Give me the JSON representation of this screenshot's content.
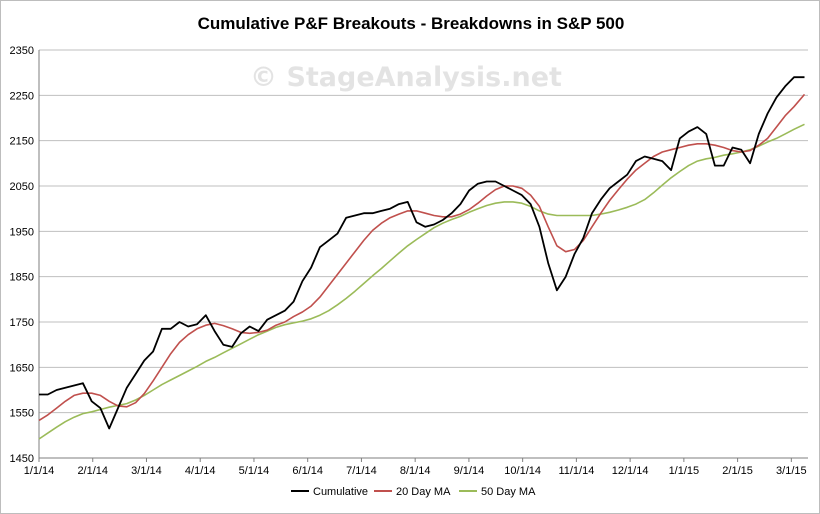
{
  "chart_data": {
    "type": "line",
    "title": "Cumulative P&F Breakouts - Breakdowns in S&P 500",
    "watermark": "© StageAnalysis.net",
    "xlabel": "",
    "ylabel": "",
    "ylim": [
      1450,
      2350
    ],
    "yticks": [
      1450,
      1550,
      1650,
      1750,
      1850,
      1950,
      2050,
      2150,
      2250,
      2350
    ],
    "xticks": [
      "1/1/14",
      "2/1/14",
      "3/1/14",
      "4/1/14",
      "5/1/14",
      "6/1/14",
      "7/1/14",
      "8/1/14",
      "9/1/14",
      "10/1/14",
      "11/1/14",
      "12/1/14",
      "1/1/15",
      "2/1/15",
      "3/1/15"
    ],
    "x_domain_days": [
      0,
      438
    ],
    "grid": true,
    "legend_position": "bottom",
    "series": [
      {
        "name": "Cumulative",
        "color": "#000000",
        "x_days": [
          0,
          5,
          10,
          15,
          20,
          25,
          30,
          35,
          40,
          45,
          50,
          55,
          60,
          65,
          70,
          75,
          80,
          85,
          90,
          95,
          100,
          105,
          110,
          115,
          120,
          125,
          130,
          135,
          140,
          145,
          150,
          155,
          160,
          165,
          170,
          175,
          180,
          185,
          190,
          195,
          200,
          205,
          210,
          215,
          220,
          225,
          230,
          235,
          240,
          245,
          250,
          255,
          260,
          265,
          270,
          275,
          280,
          285,
          290,
          295,
          300,
          305,
          310,
          315,
          320,
          325,
          330,
          335,
          340,
          345,
          350,
          355,
          360,
          365,
          370,
          375,
          380,
          385,
          390,
          395,
          400,
          405,
          410,
          415,
          420,
          425,
          430,
          436
        ],
        "values": [
          1590,
          1590,
          1600,
          1605,
          1610,
          1615,
          1575,
          1560,
          1515,
          1560,
          1605,
          1635,
          1665,
          1685,
          1735,
          1735,
          1750,
          1740,
          1745,
          1765,
          1730,
          1700,
          1695,
          1725,
          1740,
          1730,
          1755,
          1765,
          1775,
          1795,
          1840,
          1870,
          1915,
          1930,
          1945,
          1980,
          1985,
          1990,
          1990,
          1995,
          2000,
          2010,
          2015,
          1970,
          1960,
          1965,
          1975,
          1990,
          2010,
          2040,
          2055,
          2060,
          2060,
          2050,
          2040,
          2030,
          2010,
          1960,
          1880,
          1820,
          1850,
          1900,
          1935,
          1990,
          2020,
          2045,
          2060,
          2075,
          2105,
          2115,
          2110,
          2105,
          2085,
          2155,
          2170,
          2180,
          2165,
          2095,
          2095,
          2135,
          2130,
          2100,
          2165,
          2210,
          2245,
          2270,
          2290,
          2290
        ]
      },
      {
        "name": "20 Day MA",
        "color": "#c0504d",
        "x_days": [
          0,
          5,
          10,
          15,
          20,
          25,
          30,
          35,
          40,
          45,
          50,
          55,
          60,
          65,
          70,
          75,
          80,
          85,
          90,
          95,
          100,
          105,
          110,
          115,
          120,
          125,
          130,
          135,
          140,
          145,
          150,
          155,
          160,
          165,
          170,
          175,
          180,
          185,
          190,
          195,
          200,
          205,
          210,
          215,
          220,
          225,
          230,
          235,
          240,
          245,
          250,
          255,
          260,
          265,
          270,
          275,
          280,
          285,
          290,
          295,
          300,
          305,
          310,
          315,
          320,
          325,
          330,
          335,
          340,
          345,
          350,
          355,
          360,
          365,
          370,
          375,
          380,
          385,
          390,
          395,
          400,
          405,
          410,
          415,
          420,
          425,
          430,
          436
        ],
        "values": [
          1533,
          1545,
          1560,
          1575,
          1588,
          1593,
          1593,
          1588,
          1575,
          1565,
          1563,
          1572,
          1592,
          1620,
          1650,
          1680,
          1705,
          1722,
          1735,
          1743,
          1747,
          1742,
          1735,
          1727,
          1725,
          1727,
          1732,
          1743,
          1750,
          1762,
          1772,
          1785,
          1805,
          1830,
          1855,
          1880,
          1905,
          1930,
          1952,
          1968,
          1980,
          1988,
          1995,
          1995,
          1990,
          1985,
          1982,
          1982,
          1988,
          1998,
          2012,
          2028,
          2042,
          2050,
          2050,
          2045,
          2030,
          2005,
          1960,
          1918,
          1905,
          1910,
          1930,
          1960,
          1990,
          2018,
          2042,
          2065,
          2085,
          2100,
          2115,
          2125,
          2130,
          2135,
          2140,
          2143,
          2143,
          2140,
          2135,
          2128,
          2125,
          2128,
          2140,
          2155,
          2180,
          2205,
          2225,
          2252
        ]
      },
      {
        "name": "50 Day MA",
        "color": "#9bbb59",
        "x_days": [
          0,
          5,
          10,
          15,
          20,
          25,
          30,
          35,
          40,
          45,
          50,
          55,
          60,
          65,
          70,
          75,
          80,
          85,
          90,
          95,
          100,
          105,
          110,
          115,
          120,
          125,
          130,
          135,
          140,
          145,
          150,
          155,
          160,
          165,
          170,
          175,
          180,
          185,
          190,
          195,
          200,
          205,
          210,
          215,
          220,
          225,
          230,
          235,
          240,
          245,
          250,
          255,
          260,
          265,
          270,
          275,
          280,
          285,
          290,
          295,
          300,
          305,
          310,
          315,
          320,
          325,
          330,
          335,
          340,
          345,
          350,
          355,
          360,
          365,
          370,
          375,
          380,
          385,
          390,
          395,
          400,
          405,
          410,
          415,
          420,
          425,
          430,
          436
        ],
        "values": [
          1492,
          1505,
          1518,
          1530,
          1540,
          1548,
          1552,
          1557,
          1562,
          1566,
          1570,
          1578,
          1588,
          1600,
          1612,
          1622,
          1632,
          1642,
          1652,
          1663,
          1672,
          1682,
          1692,
          1702,
          1712,
          1722,
          1730,
          1738,
          1744,
          1748,
          1752,
          1757,
          1765,
          1775,
          1788,
          1802,
          1818,
          1835,
          1852,
          1868,
          1885,
          1902,
          1918,
          1932,
          1945,
          1958,
          1968,
          1976,
          1983,
          1992,
          2000,
          2007,
          2012,
          2015,
          2015,
          2012,
          2005,
          1995,
          1988,
          1985,
          1985,
          1985,
          1985,
          1985,
          1988,
          1992,
          1997,
          2003,
          2010,
          2020,
          2035,
          2052,
          2068,
          2082,
          2095,
          2105,
          2110,
          2113,
          2118,
          2121,
          2125,
          2130,
          2138,
          2147,
          2155,
          2165,
          2175,
          2186
        ]
      }
    ]
  }
}
